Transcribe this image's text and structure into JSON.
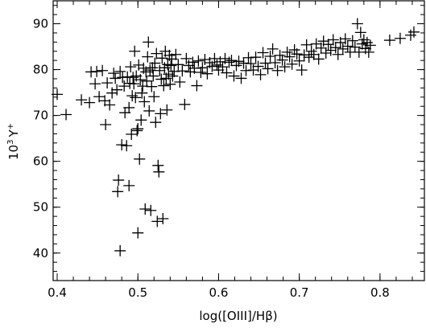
{
  "chart_data": {
    "type": "scatter",
    "marker": "plus",
    "color": "#000000",
    "xlabel": "log([OIII]/Hβ)",
    "ylabel_base": "10",
    "ylabel_exp": "3",
    "ylabel_var": "Y",
    "ylabel_sup": "+",
    "xlim": [
      0.395,
      0.855
    ],
    "ylim": [
      34,
      95
    ],
    "xticks": [
      0.4,
      0.5,
      0.6,
      0.7,
      0.8
    ],
    "xtick_labels": [
      "0.4",
      "0.5",
      "0.6",
      "0.7",
      "0.8"
    ],
    "yticks": [
      40,
      50,
      60,
      70,
      80,
      90
    ],
    "ytick_labels": [
      "40",
      "50",
      "60",
      "70",
      "80",
      "90"
    ],
    "grid": false,
    "points": [
      [
        0.4,
        74.6
      ],
      [
        0.411,
        70.2
      ],
      [
        0.43,
        73.4
      ],
      [
        0.44,
        72.8
      ],
      [
        0.442,
        79.5
      ],
      [
        0.447,
        76.9
      ],
      [
        0.449,
        79.6
      ],
      [
        0.452,
        74.1
      ],
      [
        0.456,
        79.8
      ],
      [
        0.459,
        73.2
      ],
      [
        0.46,
        68.0
      ],
      [
        0.462,
        77.1
      ],
      [
        0.465,
        72.3
      ],
      [
        0.468,
        74.9
      ],
      [
        0.47,
        79.2
      ],
      [
        0.472,
        78.1
      ],
      [
        0.474,
        75.6
      ],
      [
        0.475,
        53.4
      ],
      [
        0.476,
        55.9
      ],
      [
        0.478,
        40.5
      ],
      [
        0.478,
        79.6
      ],
      [
        0.48,
        63.6
      ],
      [
        0.481,
        78.3
      ],
      [
        0.483,
        76.4
      ],
      [
        0.484,
        70.6
      ],
      [
        0.486,
        63.4
      ],
      [
        0.487,
        78.4
      ],
      [
        0.489,
        54.7
      ],
      [
        0.489,
        71.7
      ],
      [
        0.49,
        77.0
      ],
      [
        0.491,
        80.6
      ],
      [
        0.492,
        65.9
      ],
      [
        0.493,
        74.3
      ],
      [
        0.494,
        78.3
      ],
      [
        0.495,
        76.9
      ],
      [
        0.496,
        84.0
      ],
      [
        0.497,
        73.9
      ],
      [
        0.498,
        78.6
      ],
      [
        0.499,
        66.7
      ],
      [
        0.5,
        67.1
      ],
      [
        0.5,
        44.4
      ],
      [
        0.501,
        81.0
      ],
      [
        0.502,
        60.5
      ],
      [
        0.503,
        77.8
      ],
      [
        0.504,
        69.0
      ],
      [
        0.505,
        74.9
      ],
      [
        0.506,
        76.4
      ],
      [
        0.507,
        80.3
      ],
      [
        0.508,
        73.0
      ],
      [
        0.509,
        49.6
      ],
      [
        0.51,
        79.5
      ],
      [
        0.511,
        77.5
      ],
      [
        0.512,
        82.8
      ],
      [
        0.513,
        86.0
      ],
      [
        0.514,
        71.0
      ],
      [
        0.515,
        79.9
      ],
      [
        0.516,
        49.3
      ],
      [
        0.517,
        76.3
      ],
      [
        0.518,
        80.4
      ],
      [
        0.519,
        78.6
      ],
      [
        0.52,
        74.1
      ],
      [
        0.521,
        81.4
      ],
      [
        0.522,
        68.5
      ],
      [
        0.523,
        83.5
      ],
      [
        0.524,
        46.9
      ],
      [
        0.525,
        59.1
      ],
      [
        0.526,
        57.7
      ],
      [
        0.527,
        79.8
      ],
      [
        0.528,
        70.4
      ],
      [
        0.529,
        77.9
      ],
      [
        0.53,
        82.5
      ],
      [
        0.531,
        47.5
      ],
      [
        0.532,
        76.5
      ],
      [
        0.533,
        80.4
      ],
      [
        0.534,
        84.0
      ],
      [
        0.535,
        78.1
      ],
      [
        0.536,
        71.2
      ],
      [
        0.537,
        81.1
      ],
      [
        0.538,
        79.0
      ],
      [
        0.539,
        83.1
      ],
      [
        0.54,
        76.8
      ],
      [
        0.541,
        80.9
      ],
      [
        0.542,
        82.3
      ],
      [
        0.543,
        78.6
      ],
      [
        0.545,
        79.6
      ],
      [
        0.547,
        83.3
      ],
      [
        0.55,
        81.1
      ],
      [
        0.552,
        77.3
      ],
      [
        0.555,
        79.7
      ],
      [
        0.558,
        72.4
      ],
      [
        0.56,
        82.4
      ],
      [
        0.563,
        80.9
      ],
      [
        0.565,
        79.5
      ],
      [
        0.568,
        81.6
      ],
      [
        0.57,
        80.3
      ],
      [
        0.573,
        76.5
      ],
      [
        0.575,
        81.9
      ],
      [
        0.578,
        79.4
      ],
      [
        0.58,
        80.4
      ],
      [
        0.583,
        82.2
      ],
      [
        0.586,
        79.1
      ],
      [
        0.589,
        81.5
      ],
      [
        0.592,
        80.7
      ],
      [
        0.595,
        82.4
      ],
      [
        0.598,
        81.0
      ],
      [
        0.6,
        79.9
      ],
      [
        0.602,
        81.7
      ],
      [
        0.605,
        80.6
      ],
      [
        0.608,
        82.4
      ],
      [
        0.61,
        79.3
      ],
      [
        0.613,
        81.6
      ],
      [
        0.616,
        82.0
      ],
      [
        0.619,
        78.6
      ],
      [
        0.622,
        80.9
      ],
      [
        0.625,
        81.8
      ],
      [
        0.628,
        78.1
      ],
      [
        0.631,
        81.4
      ],
      [
        0.634,
        79.8
      ],
      [
        0.637,
        82.6
      ],
      [
        0.64,
        81.3
      ],
      [
        0.643,
        79.9
      ],
      [
        0.646,
        82.7
      ],
      [
        0.649,
        80.7
      ],
      [
        0.652,
        78.9
      ],
      [
        0.655,
        83.7
      ],
      [
        0.658,
        81.4
      ],
      [
        0.661,
        80.2
      ],
      [
        0.664,
        82.9
      ],
      [
        0.667,
        84.5
      ],
      [
        0.67,
        81.5
      ],
      [
        0.673,
        79.8
      ],
      [
        0.676,
        83.1
      ],
      [
        0.679,
        82.1
      ],
      [
        0.682,
        80.6
      ],
      [
        0.685,
        83.8
      ],
      [
        0.688,
        82.8
      ],
      [
        0.691,
        81.2
      ],
      [
        0.694,
        84.3
      ],
      [
        0.697,
        83.4
      ],
      [
        0.7,
        81.9
      ],
      [
        0.703,
        79.9
      ],
      [
        0.706,
        83.2
      ],
      [
        0.709,
        85.4
      ],
      [
        0.712,
        82.7
      ],
      [
        0.715,
        84.0
      ],
      [
        0.718,
        83.3
      ],
      [
        0.721,
        85.6
      ],
      [
        0.724,
        82.3
      ],
      [
        0.727,
        84.7
      ],
      [
        0.73,
        86.2
      ],
      [
        0.733,
        83.6
      ],
      [
        0.736,
        85.5
      ],
      [
        0.739,
        84.2
      ],
      [
        0.742,
        86.5
      ],
      [
        0.745,
        84.8
      ],
      [
        0.748,
        83.3
      ],
      [
        0.751,
        85.9
      ],
      [
        0.754,
        84.5
      ],
      [
        0.757,
        86.7
      ],
      [
        0.76,
        85.1
      ],
      [
        0.763,
        83.8
      ],
      [
        0.766,
        86.3
      ],
      [
        0.769,
        84.9
      ],
      [
        0.772,
        90.0
      ],
      [
        0.774,
        83.8
      ],
      [
        0.776,
        88.1
      ],
      [
        0.778,
        85.6
      ],
      [
        0.78,
        86.5
      ],
      [
        0.782,
        84.6
      ],
      [
        0.784,
        85.9
      ],
      [
        0.786,
        83.8
      ],
      [
        0.788,
        85.3
      ],
      [
        0.812,
        86.4
      ],
      [
        0.825,
        86.8
      ],
      [
        0.838,
        87.5
      ],
      [
        0.842,
        88.2
      ]
    ]
  }
}
